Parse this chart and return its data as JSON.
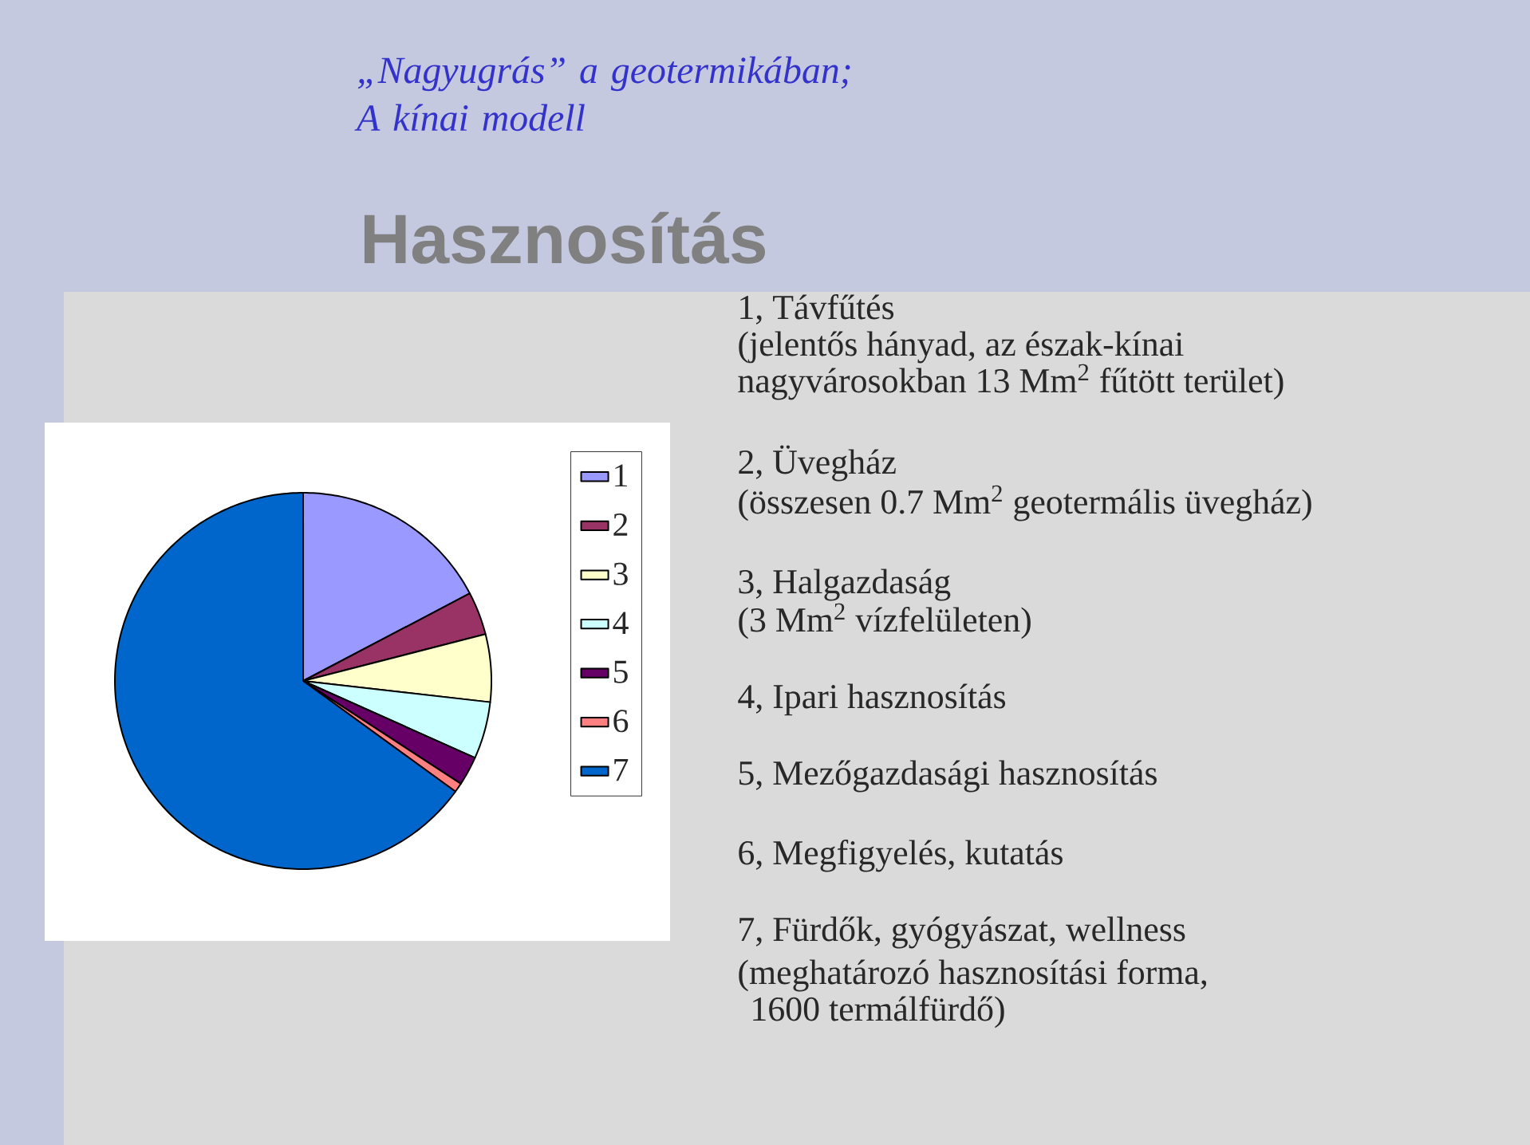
{
  "chart_data": {
    "type": "pie",
    "title": "Hasznosítás",
    "subtitle": "„Nagyugrás” a geotermikában; A kínai modell",
    "categories": [
      "1",
      "2",
      "3",
      "4",
      "5",
      "6",
      "7"
    ],
    "values": [
      17.3,
      3.7,
      5.8,
      4.9,
      2.5,
      0.8,
      65.0
    ],
    "colors": [
      "#9999ff",
      "#993366",
      "#ffffcc",
      "#ccffff",
      "#660066",
      "#ff8080",
      "#0066cc"
    ],
    "legend": "right",
    "annotations": [
      "1, Távfűtés",
      "(jelentős hányad, az észak-kínai",
      "nagyvárosokban 13 Mm$^{2}$ fűtött terület)",
      "2, Üvegház",
      "(összesen 0.7 Mm$^{2}$ geotermális üvegház)",
      "3, Halgazdaság",
      "(3 Mm$^{2}$ vízfelületen)",
      "4, Ipari hasznosítás",
      "5, Mezőgazdasági hasznosítás",
      "6, Megfigyelés, kutatás",
      "7, Fürdők, gyógyászat, wellness",
      "(meghatározó hasznosítási forma,",
      "1600 termálfürdő)"
    ]
  }
}
